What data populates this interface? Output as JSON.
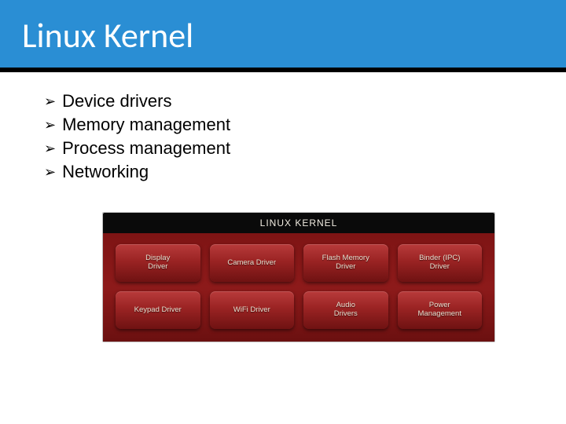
{
  "slide": {
    "title": "Linux Kernel",
    "header_bg": "#2a8ed4",
    "header_border": "#000000",
    "title_color": "#ffffff",
    "title_fontsize": 44
  },
  "bullets": {
    "items": [
      "Device drivers",
      "Memory management",
      "Process management",
      "Networking"
    ],
    "marker": "➢",
    "text_color": "#000000",
    "fontsize": 22
  },
  "kernel_panel": {
    "title": "LINUX KERNEL",
    "title_bg": "#0a0a0a",
    "title_color": "#f0ebe0",
    "grid_bg": "#8b1818",
    "block_bg_top": "#b83b3b",
    "block_bg_bottom": "#6f1212",
    "block_text_color": "#e9e0d0",
    "block_fontsize": 9.5,
    "columns": 4,
    "rows": 2,
    "blocks": [
      "Display\nDriver",
      "Camera Driver",
      "Flash Memory\nDriver",
      "Binder (IPC)\nDriver",
      "Keypad Driver",
      "WiFi Driver",
      "Audio\nDrivers",
      "Power\nManagement"
    ]
  }
}
